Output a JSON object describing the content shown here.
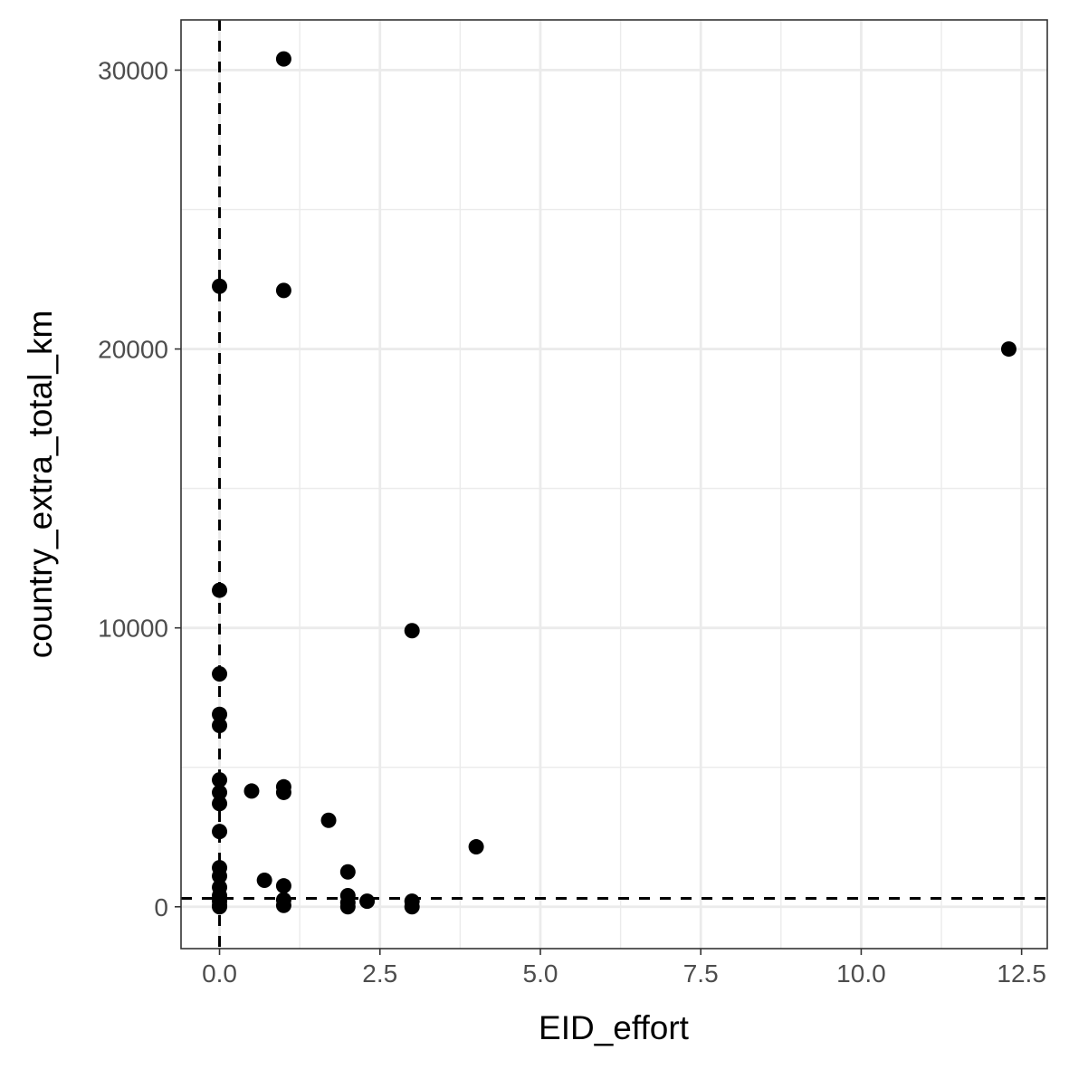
{
  "chart_data": {
    "type": "scatter",
    "xlabel": "EID_effort",
    "ylabel": "country_extra_total_km",
    "xlim": [
      -0.6,
      12.9
    ],
    "ylim": [
      -1500,
      31800
    ],
    "x_ticks": [
      0.0,
      2.5,
      5.0,
      7.5,
      10.0,
      12.5
    ],
    "x_tick_labels": [
      "0.0",
      "2.5",
      "5.0",
      "7.5",
      "10.0",
      "12.5"
    ],
    "y_ticks": [
      0,
      10000,
      20000,
      30000
    ],
    "y_tick_labels": [
      "0",
      "10000",
      "20000",
      "30000"
    ],
    "grid": true,
    "reference_lines": {
      "vertical_x": 0,
      "horizontal_y": 300,
      "style": "dashed"
    },
    "point_color": "#000000",
    "points": [
      {
        "x": 1.0,
        "y": 30400
      },
      {
        "x": 0.0,
        "y": 22250
      },
      {
        "x": 1.0,
        "y": 22100
      },
      {
        "x": 12.3,
        "y": 20000
      },
      {
        "x": 0.0,
        "y": 11350
      },
      {
        "x": 3.0,
        "y": 9900
      },
      {
        "x": 0.0,
        "y": 8350
      },
      {
        "x": 0.0,
        "y": 6900
      },
      {
        "x": 0.0,
        "y": 6500
      },
      {
        "x": 0.0,
        "y": 4550
      },
      {
        "x": 0.0,
        "y": 4100
      },
      {
        "x": 0.0,
        "y": 3700
      },
      {
        "x": 0.0,
        "y": 2700
      },
      {
        "x": 0.0,
        "y": 1400
      },
      {
        "x": 0.0,
        "y": 1100
      },
      {
        "x": 0.0,
        "y": 700
      },
      {
        "x": 0.0,
        "y": 400
      },
      {
        "x": 0.0,
        "y": 200
      },
      {
        "x": 0.0,
        "y": 50
      },
      {
        "x": 0.0,
        "y": 0
      },
      {
        "x": 0.5,
        "y": 4150
      },
      {
        "x": 0.7,
        "y": 950
      },
      {
        "x": 1.0,
        "y": 4300
      },
      {
        "x": 1.0,
        "y": 4100
      },
      {
        "x": 1.0,
        "y": 750
      },
      {
        "x": 1.0,
        "y": 250
      },
      {
        "x": 1.0,
        "y": 50
      },
      {
        "x": 1.7,
        "y": 3100
      },
      {
        "x": 2.0,
        "y": 1250
      },
      {
        "x": 2.0,
        "y": 400
      },
      {
        "x": 2.0,
        "y": 150
      },
      {
        "x": 2.0,
        "y": 0
      },
      {
        "x": 2.3,
        "y": 200
      },
      {
        "x": 3.0,
        "y": 200
      },
      {
        "x": 3.0,
        "y": 0
      },
      {
        "x": 4.0,
        "y": 2150
      }
    ]
  }
}
